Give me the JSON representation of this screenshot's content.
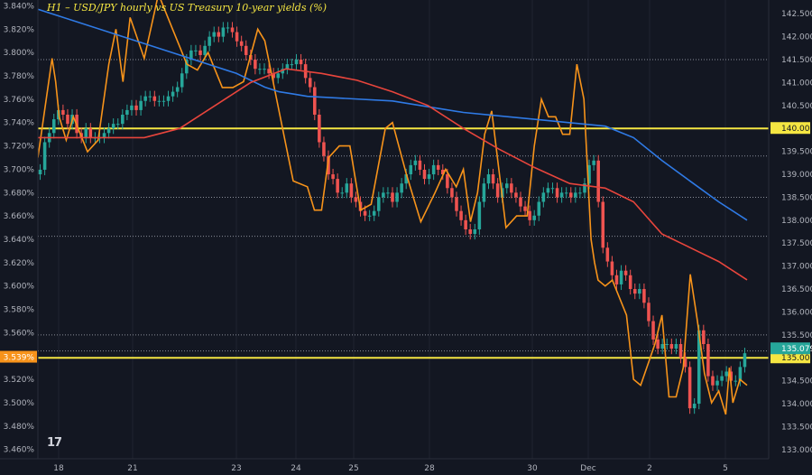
{
  "chart_data": {
    "type": "line",
    "title": "H1 – USD/JPY hourly vs US Treasury 10-year yields (%)",
    "x_labels": [
      "18",
      "21",
      "23",
      "24",
      "25",
      "28",
      "30",
      "Dec",
      "2",
      "5"
    ],
    "left_axis": {
      "ticks": [
        "3.840%",
        "3.820%",
        "3.800%",
        "3.780%",
        "3.760%",
        "3.740%",
        "3.720%",
        "3.700%",
        "3.680%",
        "3.660%",
        "3.640%",
        "3.620%",
        "3.600%",
        "3.580%",
        "3.560%",
        "3.540%",
        "3.520%",
        "3.500%",
        "3.480%",
        "3.460%"
      ],
      "range": [
        3.452,
        3.845
      ],
      "current_label": "3.539%"
    },
    "right_axis": {
      "ticks": [
        "142.500",
        "142.000",
        "141.500",
        "141.000",
        "140.500",
        "140.000",
        "139.500",
        "139.000",
        "138.500",
        "138.000",
        "137.500",
        "137.000",
        "136.500",
        "136.000",
        "135.500",
        "135.000",
        "134.500",
        "134.000",
        "133.500",
        "133.000"
      ],
      "range": [
        132.8,
        142.8
      ],
      "current_label": "135.079",
      "level_labels": [
        "140.000",
        "135.000"
      ]
    },
    "horizontal_levels": [
      140.0,
      135.0
    ],
    "dotted_levels": [
      141.5,
      139.4,
      138.5,
      137.65,
      135.5,
      135.15
    ],
    "candles_close": [
      139.1,
      139.7,
      139.9,
      140.2,
      140.4,
      140.3,
      140.1,
      140.3,
      139.9,
      139.8,
      140.0,
      139.8,
      139.8,
      139.8,
      139.9,
      140.0,
      140.1,
      140.1,
      140.3,
      140.4,
      140.5,
      140.4,
      140.6,
      140.7,
      140.7,
      140.6,
      140.6,
      140.6,
      140.7,
      140.8,
      140.9,
      141.2,
      141.5,
      141.7,
      141.7,
      141.6,
      141.8,
      142.0,
      142.1,
      142.0,
      142.2,
      142.2,
      142.1,
      141.9,
      141.8,
      141.6,
      141.5,
      141.3,
      141.3,
      141.3,
      141.2,
      141.1,
      141.2,
      141.3,
      141.4,
      141.4,
      141.5,
      141.4,
      141.1,
      140.9,
      140.3,
      139.7,
      139.4,
      139.0,
      138.9,
      138.6,
      138.6,
      138.8,
      138.5,
      138.4,
      138.2,
      138.1,
      138.1,
      138.2,
      138.5,
      138.6,
      138.6,
      138.4,
      138.6,
      138.8,
      139.0,
      139.2,
      139.3,
      139.1,
      138.9,
      139.0,
      139.2,
      139.1,
      139.0,
      138.7,
      138.5,
      138.2,
      138.0,
      137.8,
      137.7,
      137.8,
      138.4,
      138.8,
      139.0,
      138.8,
      138.5,
      138.7,
      138.8,
      138.6,
      138.5,
      138.3,
      138.2,
      138.0,
      138.1,
      138.4,
      138.6,
      138.7,
      138.7,
      138.5,
      138.6,
      138.6,
      138.5,
      138.6,
      138.6,
      138.8,
      139.2,
      139.3,
      138.4,
      137.4,
      137.1,
      136.8,
      136.6,
      136.9,
      136.8,
      136.5,
      136.4,
      136.5,
      136.2,
      135.8,
      135.4,
      135.2,
      135.3,
      135.3,
      135.2,
      135.3,
      135.0,
      134.8,
      133.9,
      134.0,
      135.6,
      135.3,
      134.6,
      134.4,
      134.5,
      134.6,
      134.7,
      134.5,
      134.5,
      134.8,
      135.1
    ],
    "series": [
      {
        "name": "",
        "axis": "left",
        "color": "#f7931a",
        "x": [
          0,
          0.02,
          0.025,
          0.03,
          0.04,
          0.05,
          0.07,
          0.085,
          0.1,
          0.11,
          0.12,
          0.13,
          0.15,
          0.17,
          0.19,
          0.21,
          0.225,
          0.24,
          0.26,
          0.275,
          0.29,
          0.31,
          0.32,
          0.33,
          0.35,
          0.36,
          0.38,
          0.39,
          0.4,
          0.41,
          0.425,
          0.44,
          0.455,
          0.47,
          0.49,
          0.5,
          0.52,
          0.54,
          0.56,
          0.575,
          0.59,
          0.6,
          0.61,
          0.62,
          0.63,
          0.64,
          0.66,
          0.675,
          0.69,
          0.7,
          0.71,
          0.72,
          0.73,
          0.74,
          0.75,
          0.76,
          0.77,
          0.78,
          0.785,
          0.79,
          0.8,
          0.81,
          0.83,
          0.84,
          0.85,
          0.87,
          0.88,
          0.89,
          0.9,
          0.91,
          0.92,
          0.93,
          0.94,
          0.95,
          0.96,
          0.97,
          0.975,
          0.98,
          0.99,
          1.0
        ],
        "y": [
          3.71,
          3.795,
          3.775,
          3.745,
          3.725,
          3.745,
          3.715,
          3.725,
          3.79,
          3.82,
          3.775,
          3.83,
          3.795,
          3.85,
          3.82,
          3.79,
          3.785,
          3.8,
          3.77,
          3.77,
          3.775,
          3.82,
          3.81,
          3.78,
          3.72,
          3.69,
          3.685,
          3.665,
          3.665,
          3.71,
          3.72,
          3.72,
          3.665,
          3.67,
          3.735,
          3.74,
          3.695,
          3.655,
          3.68,
          3.7,
          3.685,
          3.7,
          3.655,
          3.68,
          3.73,
          3.75,
          3.65,
          3.66,
          3.66,
          3.72,
          3.76,
          3.745,
          3.745,
          3.73,
          3.73,
          3.79,
          3.76,
          3.64,
          3.62,
          3.605,
          3.6,
          3.605,
          3.575,
          3.52,
          3.515,
          3.55,
          3.575,
          3.505,
          3.505,
          3.53,
          3.61,
          3.57,
          3.525,
          3.5,
          3.51,
          3.49,
          3.53,
          3.5,
          3.52,
          3.515
        ]
      },
      {
        "name": "",
        "axis": "right",
        "color": "#2f7ae5",
        "x": [
          0,
          0.12,
          0.22,
          0.28,
          0.32,
          0.34,
          0.36,
          0.38,
          0.5,
          0.6,
          0.7,
          0.8,
          0.84,
          0.88,
          0.92,
          0.96,
          1.0
        ],
        "y": [
          142.6,
          142.0,
          141.5,
          141.2,
          140.9,
          140.8,
          140.75,
          140.7,
          140.6,
          140.35,
          140.2,
          140.05,
          139.8,
          139.3,
          138.85,
          138.4,
          138.0
        ]
      },
      {
        "name": "",
        "axis": "right",
        "color": "#e8453c",
        "x": [
          0,
          0.15,
          0.2,
          0.25,
          0.3,
          0.35,
          0.4,
          0.45,
          0.5,
          0.55,
          0.6,
          0.65,
          0.7,
          0.75,
          0.8,
          0.84,
          0.88,
          0.92,
          0.96,
          1.0
        ],
        "y": [
          139.8,
          139.8,
          140.0,
          140.5,
          141.0,
          141.3,
          141.2,
          141.05,
          140.8,
          140.5,
          140.0,
          139.55,
          139.15,
          138.8,
          138.7,
          138.4,
          137.7,
          137.4,
          137.1,
          136.7
        ]
      }
    ]
  }
}
